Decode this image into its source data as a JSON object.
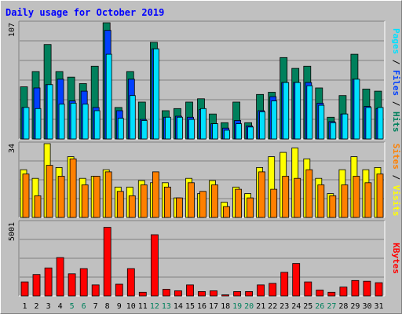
{
  "chart_data": {
    "type": "bar",
    "title": "Daily usage for October 2019",
    "colors": {
      "hits": "#00805c",
      "files": "#0040ff",
      "pages": "#00e0ff",
      "visits": "#ffff00",
      "sites": "#ff8000",
      "kbytes": "#ff0000",
      "weekend_label": "#00805c",
      "weekday_label": "#000000",
      "title": "#0000ff"
    },
    "categories": [
      "1",
      "2",
      "3",
      "4",
      "5",
      "6",
      "7",
      "8",
      "9",
      "10",
      "11",
      "12",
      "13",
      "14",
      "15",
      "16",
      "17",
      "18",
      "19",
      "20",
      "21",
      "22",
      "23",
      "24",
      "25",
      "26",
      "27",
      "28",
      "29",
      "30",
      "31"
    ],
    "weekend_days": [
      "5",
      "6",
      "12",
      "13",
      "19",
      "20",
      "26",
      "27"
    ],
    "panels": [
      {
        "name": "hits-files-pages",
        "ytick": "107",
        "ymax": 107,
        "side_labels": [
          {
            "text": "Pages",
            "color": "#00e0ff"
          },
          {
            "text": " / ",
            "color": "#000000"
          },
          {
            "text": "Files",
            "color": "#0040ff"
          },
          {
            "text": " / ",
            "color": "#000000"
          },
          {
            "text": "Hits",
            "color": "#00805c"
          }
        ],
        "series": [
          {
            "name": "Hits",
            "color": "#00805c",
            "values": [
              48,
              62,
              87,
              62,
              57,
              51,
              67,
              107,
              29,
              62,
              34,
              89,
              26,
              28,
              34,
              37,
              23,
              15,
              34,
              15,
              41,
              43,
              75,
              65,
              67,
              47,
              20,
              40,
              78,
              46,
              44
            ]
          },
          {
            "name": "Files",
            "color": "#0040ff",
            "values": [
              29,
              47,
              50,
              55,
              35,
              44,
              29,
              100,
              26,
              55,
              18,
              83,
              20,
              21,
              20,
              27,
              14,
              10,
              17,
              12,
              26,
              39,
              52,
              52,
              52,
              33,
              16,
              23,
              55,
              30,
              28
            ]
          },
          {
            "name": "Pages",
            "color": "#00e0ff",
            "values": [
              29,
              28,
              50,
              32,
              33,
              32,
              26,
              78,
              19,
              40,
              17,
              83,
              20,
              20,
              18,
              28,
              14,
              8,
              14,
              11,
              25,
              35,
              52,
              52,
              49,
              31,
              15,
              23,
              55,
              29,
              29
            ]
          }
        ]
      },
      {
        "name": "visits-sites",
        "ytick": "34",
        "ymax": 34,
        "side_labels": [
          {
            "text": "Sites",
            "color": "#ff8000"
          },
          {
            "text": " / ",
            "color": "#000000"
          },
          {
            "text": "Visits",
            "color": "#ffff00"
          }
        ],
        "series": [
          {
            "name": "Visits",
            "color": "#ffff00",
            "values": [
              22,
              18,
              34,
              23,
              28,
              18,
              19,
              22,
              14,
              14,
              17,
              16,
              16,
              9,
              18,
              11,
              17,
              7,
              14,
              11,
              23,
              28,
              30,
              32,
              27,
              18,
              11,
              22,
              28,
              22,
              23
            ]
          },
          {
            "name": "Sites",
            "color": "#ff8000",
            "values": [
              20,
              10,
              24,
              19,
              27,
              15,
              19,
              21,
              12,
              10,
              15,
              21,
              14,
              9,
              16,
              12,
              15,
              5,
              13,
              9,
              21,
              13,
              19,
              18,
              22,
              15,
              10,
              15,
              19,
              16,
              20
            ]
          }
        ]
      },
      {
        "name": "kbytes",
        "ytick": "5001",
        "ymax": 5001,
        "side_labels": [
          {
            "text": "KBytes",
            "color": "#ff0000"
          }
        ],
        "series": [
          {
            "name": "KBytes",
            "color": "#ff0000",
            "values": [
              950,
              1450,
              1900,
              2600,
              1500,
              1850,
              750,
              4650,
              800,
              1850,
              250,
              4150,
              450,
              350,
              750,
              300,
              350,
              75,
              300,
              300,
              750,
              850,
              1600,
              2200,
              950,
              400,
              250,
              600,
              1050,
              1000,
              900
            ]
          }
        ]
      }
    ]
  }
}
